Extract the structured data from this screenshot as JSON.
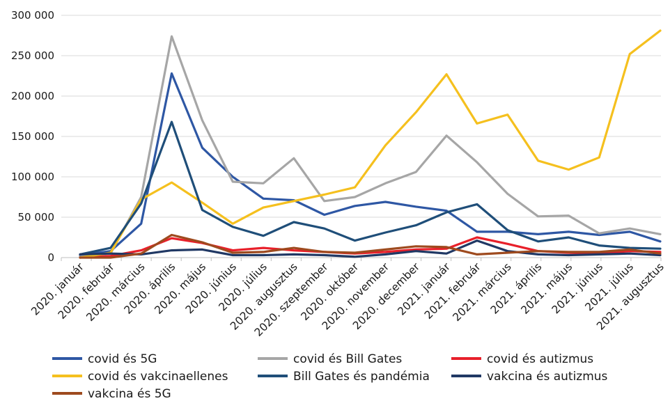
{
  "chart_data": {
    "type": "line",
    "title": "",
    "xlabel": "",
    "ylabel": "",
    "ylim": [
      0,
      300000
    ],
    "yticks": [
      0,
      50000,
      100000,
      150000,
      200000,
      250000,
      300000
    ],
    "ytick_labels": [
      "0",
      "50 000",
      "100 000",
      "150 000",
      "200 000",
      "250 000",
      "300 000"
    ],
    "grid": "horizontal",
    "legend_position": "bottom",
    "categories": [
      "2020. január",
      "2020. február",
      "2020. március",
      "2020. április",
      "2020. május",
      "2020. június",
      "2020. július",
      "2020. augusztus",
      "2020. szeptember",
      "2020. október",
      "2020. november",
      "2020. december",
      "2021. január",
      "2021. február",
      "2021. március",
      "2021. április",
      "2021. május",
      "2021. június",
      "2021. július",
      "2021. augusztus"
    ],
    "series": [
      {
        "name": "covid és 5G",
        "color": "#2e57a4",
        "values": [
          3000,
          8000,
          42000,
          228000,
          136000,
          100000,
          73000,
          71000,
          53000,
          64000,
          69000,
          63000,
          58000,
          32000,
          32000,
          29000,
          32000,
          28000,
          32000,
          20000
        ]
      },
      {
        "name": "covid és Bill Gates",
        "color": "#a6a6a6",
        "values": [
          1000,
          5000,
          75000,
          274000,
          170000,
          94000,
          92000,
          123000,
          70000,
          75000,
          92000,
          106000,
          151000,
          118000,
          79000,
          51000,
          52000,
          30000,
          36000,
          29000
        ]
      },
      {
        "name": "covid és autizmus",
        "color": "#e8202a",
        "values": [
          0,
          2000,
          9000,
          24000,
          18000,
          9000,
          12000,
          9000,
          7000,
          5000,
          7000,
          10000,
          11000,
          25000,
          17000,
          8000,
          6000,
          5000,
          8000,
          7000
        ]
      },
      {
        "name": "covid és vakcinaellenes",
        "color": "#f5c01e",
        "values": [
          0,
          6000,
          72000,
          93000,
          68000,
          42000,
          62000,
          70000,
          78000,
          87000,
          139000,
          180000,
          227000,
          166000,
          177000,
          120000,
          109000,
          124000,
          252000,
          281000
        ]
      },
      {
        "name": "Bill Gates és pandémia",
        "color": "#1f4e79",
        "values": [
          4000,
          12000,
          67000,
          168000,
          59000,
          38000,
          27000,
          44000,
          36000,
          21000,
          31000,
          40000,
          56000,
          66000,
          34000,
          20000,
          25000,
          15000,
          12000,
          11000
        ]
      },
      {
        "name": "vakcina és autizmus",
        "color": "#203864",
        "values": [
          4000,
          5000,
          4000,
          9000,
          10000,
          3000,
          3000,
          4000,
          3000,
          1000,
          4000,
          8000,
          5000,
          21000,
          8000,
          4000,
          3000,
          4000,
          5000,
          3000
        ]
      },
      {
        "name": "vakcina és 5G",
        "color": "#9e4a1e",
        "values": [
          0,
          0,
          5000,
          28000,
          19000,
          6000,
          7000,
          12000,
          7000,
          6000,
          10000,
          14000,
          13000,
          4000,
          6000,
          8000,
          7000,
          7000,
          10000,
          5000
        ]
      }
    ]
  }
}
